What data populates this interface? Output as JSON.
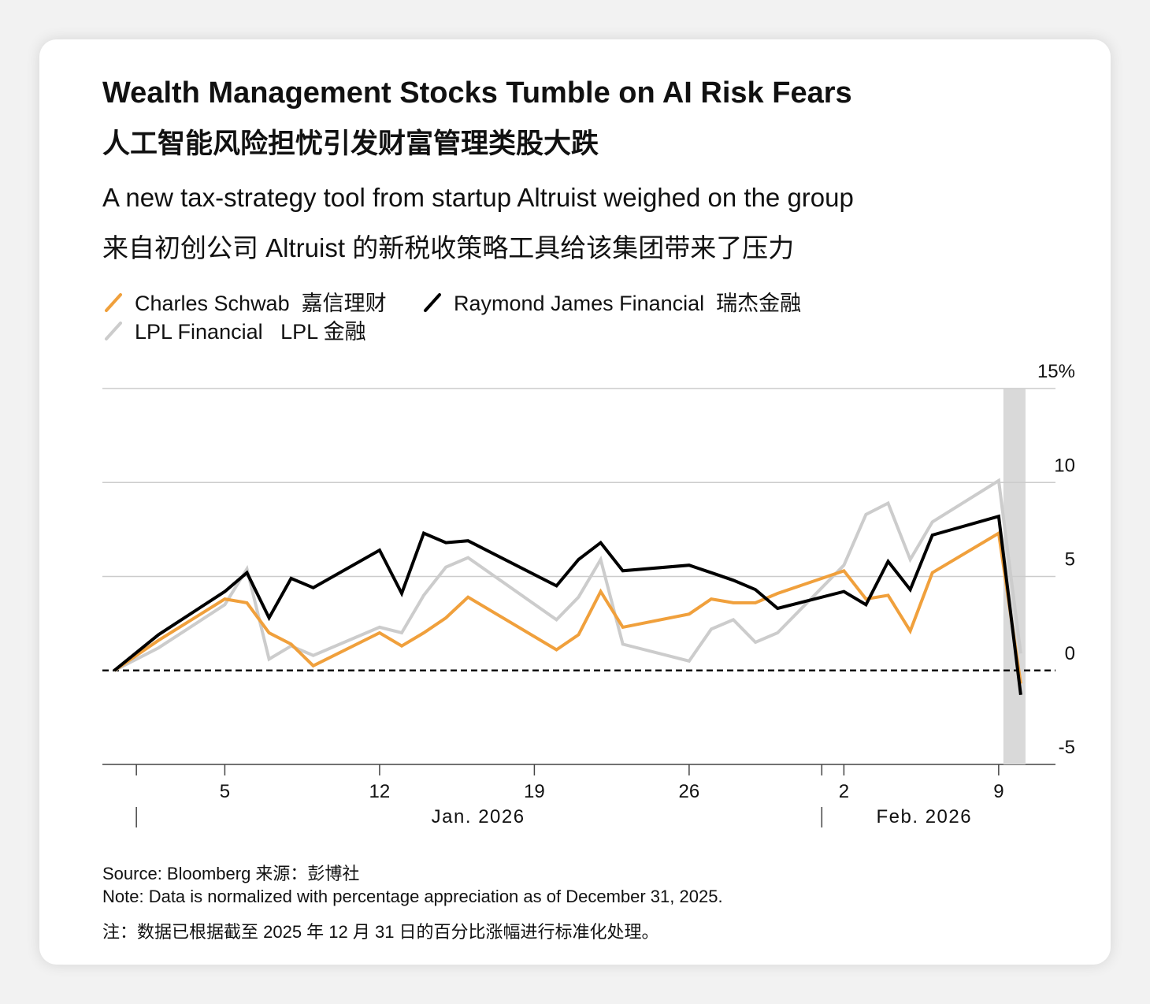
{
  "chart_data": {
    "type": "line",
    "title": "Wealth Management Stocks Tumble on AI Risk Fears",
    "title_zh": "人工智能风险担忧引发财富管理类股大跌",
    "subtitle": "A new tax-strategy tool from startup Altruist weighed on the group",
    "subtitle_zh": "来自初创公司 Altruist 的新税收策略工具给该集团带来了压力",
    "source": "Source: Bloomberg   来源：彭博社",
    "note": "Note: Data is normalized with percentage appreciation as of December 31, 2025.",
    "note_zh": "注：数据已根据截至 2025 年 12 月 31 日的百分比涨幅进行标准化处理。",
    "x": [
      "2025-12-31",
      "2026-01-02",
      "2026-01-05",
      "2026-01-06",
      "2026-01-07",
      "2026-01-08",
      "2026-01-09",
      "2026-01-12",
      "2026-01-13",
      "2026-01-14",
      "2026-01-15",
      "2026-01-16",
      "2026-01-20",
      "2026-01-21",
      "2026-01-22",
      "2026-01-23",
      "2026-01-26",
      "2026-01-27",
      "2026-01-28",
      "2026-01-29",
      "2026-01-30",
      "2026-02-02",
      "2026-02-03",
      "2026-02-04",
      "2026-02-05",
      "2026-02-06",
      "2026-02-09",
      "2026-02-10"
    ],
    "series": [
      {
        "name": "LPL Financial   LPL 金融",
        "color": "#cccccc",
        "values": [
          0,
          1.2,
          3.5,
          5.4,
          0.6,
          1.3,
          0.8,
          2.3,
          2.0,
          4.0,
          5.5,
          6.0,
          2.7,
          3.9,
          5.9,
          1.4,
          0.5,
          2.2,
          2.7,
          1.5,
          2.0,
          5.6,
          8.3,
          8.9,
          5.9,
          7.9,
          10.1,
          0.9
        ]
      },
      {
        "name": "Charles Schwab  嘉信理财",
        "color": "#f0a03c",
        "values": [
          0,
          1.6,
          3.8,
          3.6,
          2.0,
          1.4,
          0.25,
          2.0,
          1.3,
          2.0,
          2.8,
          3.9,
          1.1,
          1.9,
          4.2,
          2.3,
          3.0,
          3.8,
          3.6,
          3.6,
          4.1,
          5.3,
          3.8,
          4.0,
          2.1,
          5.2,
          7.3,
          -0.7
        ]
      },
      {
        "name": "Raymond James Financial  瑞杰金融",
        "color": "#000000",
        "values": [
          0,
          1.9,
          4.2,
          5.2,
          2.8,
          4.9,
          4.4,
          6.4,
          4.1,
          7.3,
          6.8,
          6.9,
          4.5,
          5.9,
          6.8,
          5.3,
          5.6,
          5.2,
          4.8,
          4.3,
          3.3,
          4.2,
          3.5,
          5.8,
          4.3,
          7.2,
          8.2,
          -1.3
        ]
      }
    ],
    "xlim": [
      "2025-12-30",
      "2026-02-12"
    ],
    "xticks": [
      {
        "value": "2026-01-05",
        "label": "5"
      },
      {
        "value": "2026-01-12",
        "label": "12"
      },
      {
        "value": "2026-01-19",
        "label": "19"
      },
      {
        "value": "2026-01-26",
        "label": "26"
      },
      {
        "value": "2026-02-02",
        "label": "2"
      },
      {
        "value": "2026-02-09",
        "label": "9"
      }
    ],
    "x_groups": [
      {
        "label": "Jan. 2026",
        "start": "2026-01-01"
      },
      {
        "label": "Feb. 2026",
        "start": "2026-02-01"
      }
    ],
    "highlight": [
      "2026-02-09",
      "2026-02-10"
    ],
    "ylim": [
      -5,
      15
    ],
    "yticks": [
      -5,
      0,
      5,
      10,
      {
        "value": 15,
        "label": "15%"
      }
    ],
    "grid": true
  }
}
